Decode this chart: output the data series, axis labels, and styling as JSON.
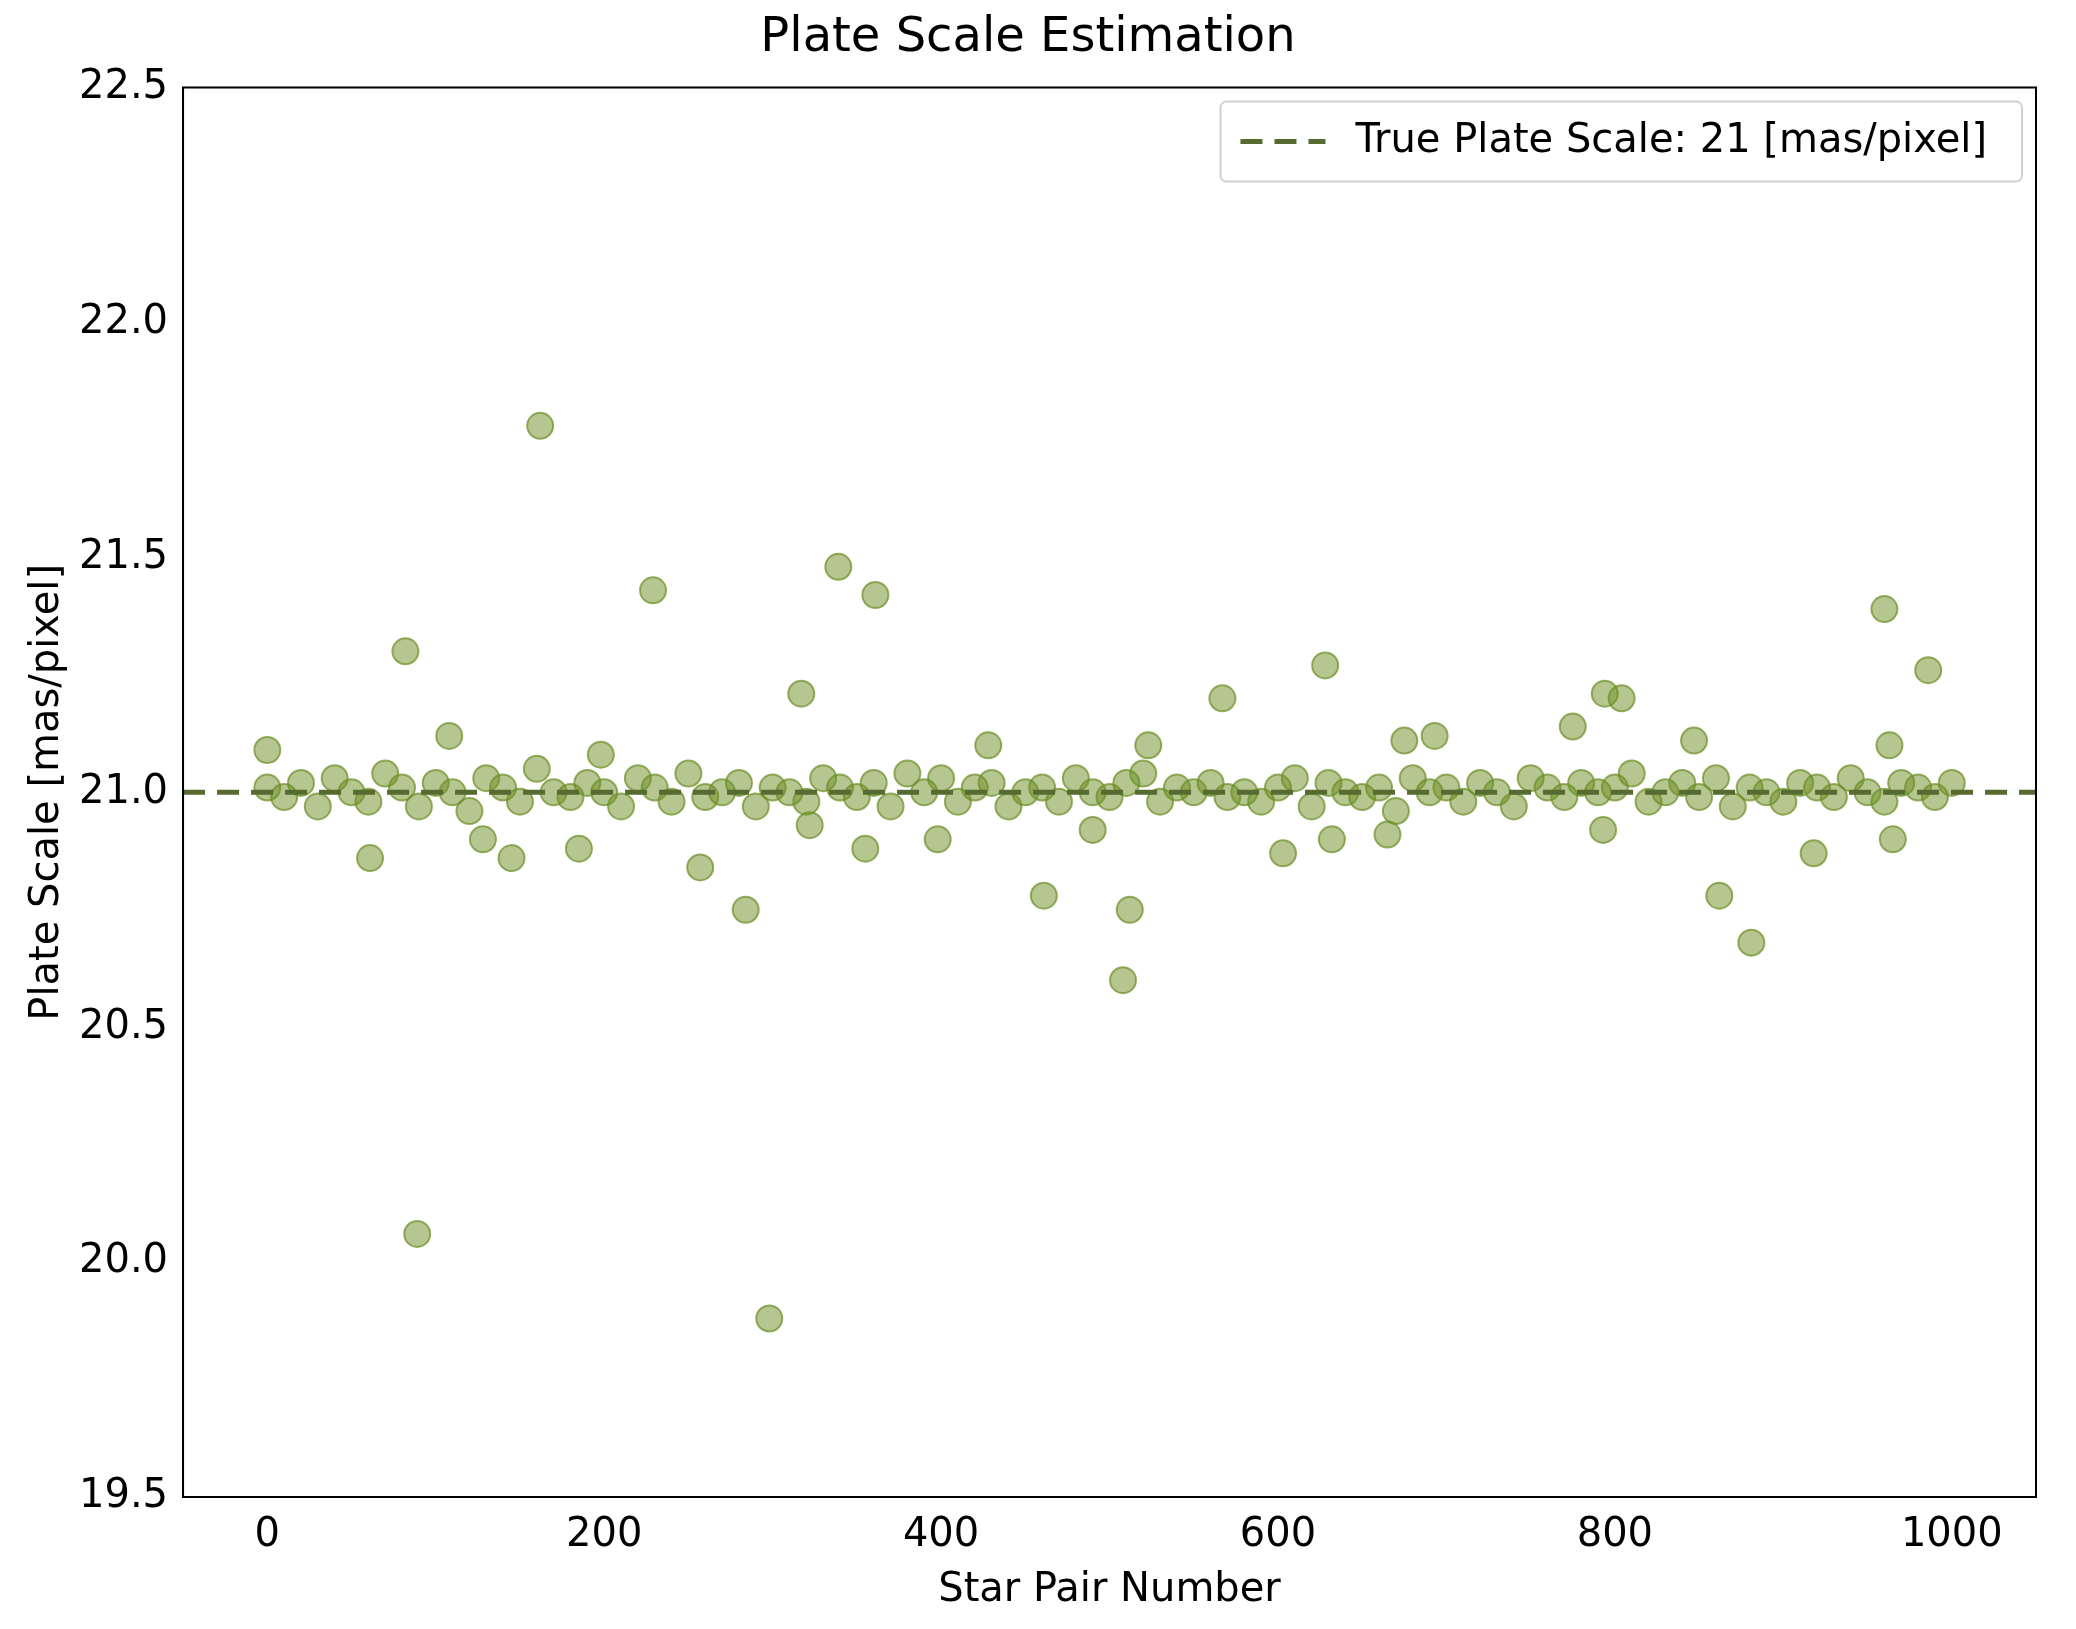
{
  "chart_data": {
    "type": "scatter",
    "title": "Plate Scale Estimation",
    "xlabel": "Star Pair Number",
    "ylabel": "Plate Scale [mas/pixel]",
    "xlim": [
      -50,
      1050
    ],
    "xticks": [
      0,
      200,
      400,
      600,
      800,
      1000
    ],
    "ylim": [
      19.5,
      22.5
    ],
    "yticks": [
      {
        "value": 19.5,
        "label": "19.5"
      },
      {
        "value": 20,
        "label": "20.0"
      },
      {
        "value": 20.5,
        "label": "20.5"
      },
      {
        "value": 21,
        "label": "21.0"
      },
      {
        "value": 21.5,
        "label": "21.5"
      },
      {
        "value": 22,
        "label": "22.0"
      },
      {
        "value": 22.5,
        "label": "22.5"
      }
    ],
    "grid": false,
    "legend": "top right",
    "marker": "circle",
    "series": [
      {
        "color": "#6b8e23",
        "x": [
          0,
          10,
          20,
          30,
          40,
          50,
          60,
          70,
          80,
          90,
          100,
          110,
          120,
          130,
          140,
          150,
          160,
          170,
          180,
          190,
          200,
          210,
          220,
          230,
          240,
          250,
          260,
          270,
          280,
          290,
          300,
          310,
          320,
          330,
          340,
          350,
          360,
          370,
          380,
          390,
          400,
          410,
          420,
          430,
          440,
          450,
          460,
          470,
          480,
          490,
          500,
          510,
          520,
          530,
          540,
          550,
          560,
          570,
          580,
          590,
          600,
          610,
          620,
          630,
          640,
          650,
          660,
          670,
          680,
          690,
          700,
          710,
          720,
          730,
          740,
          750,
          760,
          770,
          780,
          790,
          800,
          810,
          820,
          830,
          840,
          850,
          860,
          870,
          880,
          890,
          900,
          910,
          920,
          930,
          940,
          950,
          960,
          970,
          980,
          990,
          1000,
          162,
          82,
          89,
          229,
          339,
          361,
          317,
          298,
          284,
          508,
          512,
          461,
          567,
          628,
          960,
          986,
          794,
          804,
          862,
          881,
          918,
          775,
          0,
          61,
          145,
          257,
          185,
          355,
          603,
          490,
          693,
          675,
          428,
          523,
          108,
          198,
          847,
          963,
          965,
          665,
          632,
          793,
          398,
          322,
          128
        ],
        "values": [
          21.01,
          20.99,
          21.02,
          20.97,
          21.03,
          21.0,
          20.98,
          21.04,
          21.01,
          20.97,
          21.02,
          21.0,
          20.96,
          21.03,
          21.01,
          20.98,
          21.05,
          21.0,
          20.99,
          21.02,
          21.0,
          20.97,
          21.03,
          21.01,
          20.98,
          21.04,
          20.99,
          21.0,
          21.02,
          20.97,
          21.01,
          21.0,
          20.98,
          21.03,
          21.01,
          20.99,
          21.02,
          20.97,
          21.04,
          21.0,
          21.03,
          20.98,
          21.01,
          21.02,
          20.97,
          21.0,
          21.01,
          20.98,
          21.03,
          21.0,
          20.99,
          21.02,
          21.04,
          20.98,
          21.01,
          21.0,
          21.02,
          20.99,
          21.0,
          20.98,
          21.01,
          21.03,
          20.97,
          21.02,
          21.0,
          20.99,
          21.01,
          20.96,
          21.03,
          21.0,
          21.01,
          20.98,
          21.02,
          21.0,
          20.97,
          21.03,
          21.01,
          20.99,
          21.02,
          21.0,
          21.01,
          21.04,
          20.98,
          21.0,
          21.02,
          20.99,
          21.03,
          20.97,
          21.01,
          21.0,
          20.98,
          21.02,
          21.01,
          20.99,
          21.03,
          21.0,
          20.98,
          21.02,
          21.01,
          20.99,
          21.02,
          21.78,
          21.3,
          20.06,
          21.43,
          21.48,
          21.42,
          21.21,
          19.88,
          20.75,
          20.6,
          20.75,
          20.78,
          21.2,
          21.27,
          21.39,
          21.26,
          21.21,
          21.2,
          20.78,
          20.68,
          20.87,
          21.14,
          21.09,
          20.86,
          20.86,
          20.84,
          20.88,
          20.88,
          20.87,
          20.92,
          21.12,
          21.11,
          21.1,
          21.1,
          21.12,
          21.08,
          21.11,
          21.1,
          20.9,
          20.91,
          20.9,
          20.92,
          20.9,
          20.93,
          20.9
        ]
      }
    ],
    "ref_lines": [
      {
        "axis": "y",
        "value": 21,
        "label": "True Plate Scale: 21 [mas/pixel]",
        "color": "#556b2f",
        "line_style": "dashed"
      }
    ]
  }
}
